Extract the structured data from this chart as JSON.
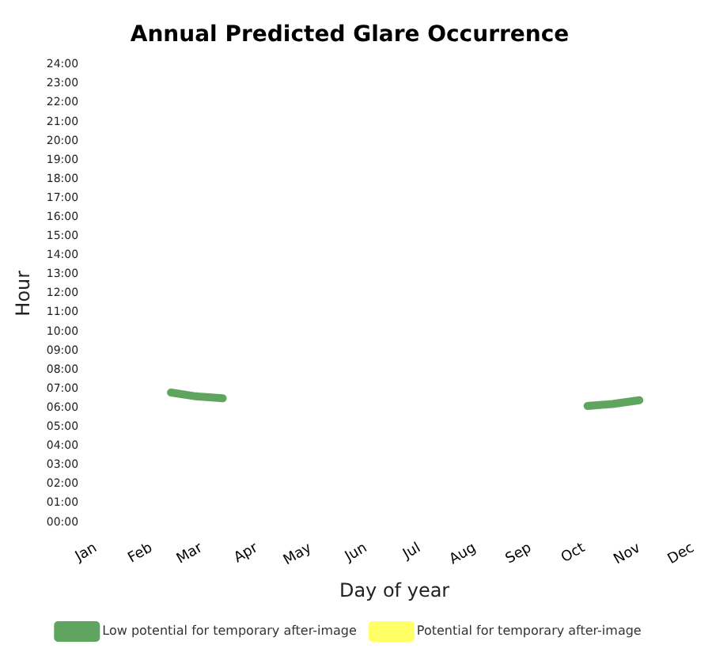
{
  "chart_data": {
    "type": "line",
    "title": "Annual Predicted Glare Occurrence",
    "xlabel": "Day of year",
    "ylabel": "Hour",
    "xlim": [
      "--01-01",
      "--12-01"
    ],
    "xticks": [
      {
        "value": "--01-01",
        "label": "Jan"
      },
      {
        "value": "--02-01",
        "label": "Feb"
      },
      {
        "value": "--03-01",
        "label": "Mar"
      },
      {
        "value": "--04-01",
        "label": "Apr"
      },
      {
        "value": "--05-01",
        "label": "May"
      },
      {
        "value": "--06-01",
        "label": "Jun"
      },
      {
        "value": "--07-01",
        "label": "Jul"
      },
      {
        "value": "--08-01",
        "label": "Aug"
      },
      {
        "value": "--09-01",
        "label": "Sep"
      },
      {
        "value": "--10-01",
        "label": "Oct"
      },
      {
        "value": "--11-01",
        "label": "Nov"
      },
      {
        "value": "--12-01",
        "label": "Dec"
      }
    ],
    "ylim": [
      0,
      24
    ],
    "yticks": [
      {
        "value": 0,
        "label": "00:00"
      },
      {
        "value": 1,
        "label": "01:00"
      },
      {
        "value": 2,
        "label": "02:00"
      },
      {
        "value": 3,
        "label": "03:00"
      },
      {
        "value": 4,
        "label": "04:00"
      },
      {
        "value": 5,
        "label": "05:00"
      },
      {
        "value": 6,
        "label": "06:00"
      },
      {
        "value": 7,
        "label": "07:00"
      },
      {
        "value": 8,
        "label": "08:00"
      },
      {
        "value": 9,
        "label": "09:00"
      },
      {
        "value": 10,
        "label": "10:00"
      },
      {
        "value": 11,
        "label": "11:00"
      },
      {
        "value": 12,
        "label": "12:00"
      },
      {
        "value": 13,
        "label": "13:00"
      },
      {
        "value": 14,
        "label": "14:00"
      },
      {
        "value": 15,
        "label": "15:00"
      },
      {
        "value": 16,
        "label": "16:00"
      },
      {
        "value": 17,
        "label": "17:00"
      },
      {
        "value": 18,
        "label": "18:00"
      },
      {
        "value": 19,
        "label": "19:00"
      },
      {
        "value": 20,
        "label": "20:00"
      },
      {
        "value": 21,
        "label": "21:00"
      },
      {
        "value": 22,
        "label": "22:00"
      },
      {
        "value": 23,
        "label": "23:00"
      },
      {
        "value": 24,
        "label": "24:00"
      }
    ],
    "grid": false,
    "legend": "bottom",
    "marker": "none",
    "line_style": "solid",
    "series": [
      {
        "name": "Low potential for temporary after-image",
        "color": "#5fa55f",
        "x": [
          "--02-12",
          "--02-26",
          "--03-13",
          "--07-01",
          "--10-03",
          "--10-17",
          "--11-01"
        ],
        "values": [
          6.8,
          6.6,
          6.5,
          null,
          6.1,
          6.2,
          6.4
        ]
      },
      {
        "name": "Potential for temporary after-image",
        "color": "#ffff66"
      }
    ]
  }
}
